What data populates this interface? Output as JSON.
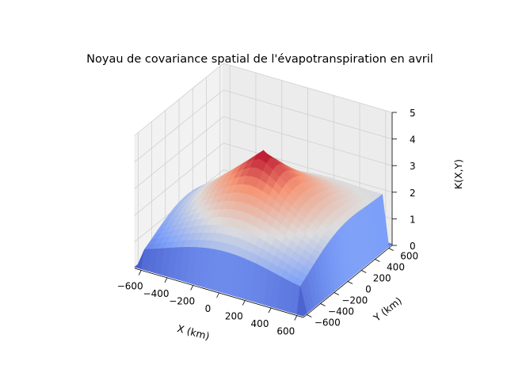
{
  "chart_data": {
    "type": "surface3d",
    "title": "Noyau de covariance spatial de l'évapotranspiration en avril",
    "xlabel": "X (km)",
    "ylabel": "Y (km)",
    "zlabel": "K(X,Y)",
    "xlim": [
      -650,
      650
    ],
    "ylim": [
      -650,
      650
    ],
    "zlim": [
      0,
      5
    ],
    "xticks": [
      "−600",
      "−400",
      "−200",
      "0",
      "200",
      "400",
      "600"
    ],
    "yticks": [
      "−600",
      "−400",
      "−200",
      "0",
      "200",
      "400",
      "600"
    ],
    "zticks": [
      "0",
      "1",
      "2",
      "3",
      "4",
      "5"
    ],
    "xtick_values": [
      -600,
      -400,
      -200,
      0,
      200,
      400,
      600
    ],
    "ytick_values": [
      -600,
      -400,
      -200,
      0,
      200,
      400,
      600
    ],
    "ztick_values": [
      0,
      1,
      2,
      3,
      4,
      5
    ],
    "colormap": "coolwarm",
    "peak": {
      "x": 0,
      "y": 0,
      "z": 4.0
    },
    "corner_values": {
      "front": 0.6,
      "left": 0.8,
      "right": 0.9,
      "back": 2.0
    },
    "grid": true
  }
}
